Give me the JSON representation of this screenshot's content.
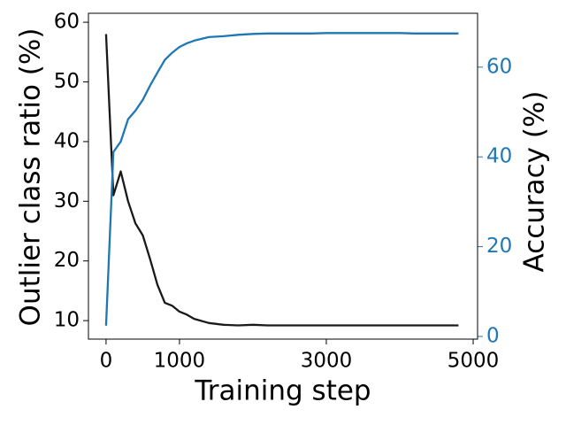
{
  "chart_data": {
    "type": "line",
    "xlabel": "Training step",
    "ylabel": "Outlier class ratio (%)",
    "y2label": "Accuracy (%)",
    "x": [
      0,
      100,
      200,
      300,
      400,
      500,
      600,
      700,
      800,
      900,
      1000,
      1100,
      1200,
      1400,
      1600,
      1800,
      2000,
      2200,
      2400,
      2600,
      2800,
      3000,
      3200,
      3400,
      3600,
      3800,
      4000,
      4200,
      4400,
      4600,
      4800
    ],
    "series": [
      {
        "color": "#1a1a1a",
        "axis": "y",
        "values": [
          58,
          31,
          35,
          30,
          26.3,
          24.3,
          20.3,
          16,
          13,
          12.5,
          11.5,
          11,
          10.3,
          9.6,
          9.3,
          9.2,
          9.3,
          9.2,
          9.2,
          9.2,
          9.2,
          9.2,
          9.2,
          9.2,
          9.2,
          9.2,
          9.2,
          9.2,
          9.2,
          9.2,
          9.2
        ]
      },
      {
        "color": "#1f77b4",
        "axis": "y2",
        "values": [
          2.4,
          41.1,
          43.4,
          48.4,
          50.3,
          52.7,
          55.9,
          58.8,
          61.6,
          63.2,
          64.5,
          65.3,
          65.9,
          66.7,
          66.9,
          67.2,
          67.4,
          67.5,
          67.5,
          67.5,
          67.5,
          67.6,
          67.6,
          67.6,
          67.6,
          67.6,
          67.6,
          67.5,
          67.5,
          67.5,
          67.5
        ]
      }
    ],
    "xlim": [
      -240,
      5060
    ],
    "xticks": [
      0,
      1000,
      3000,
      5000
    ],
    "ylim": [
      6.9,
      61.5
    ],
    "yticks": [
      10,
      20,
      30,
      40,
      50,
      60
    ],
    "y2lim": [
      -0.6,
      72
    ],
    "y2ticks": [
      0,
      20,
      40,
      60
    ],
    "y2color": "#1f77b4"
  }
}
